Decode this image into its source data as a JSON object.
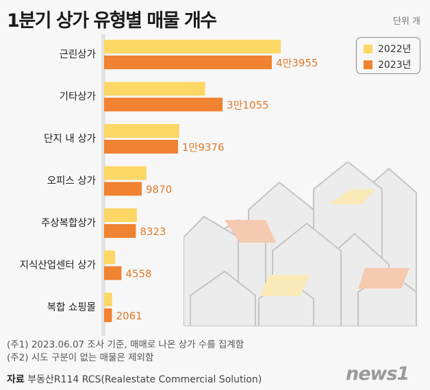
{
  "title": "1분기 상가 유형별 매물 개수",
  "unit": "단위 개",
  "colors": {
    "y2022": "#fdd766",
    "y2023": "#f08231",
    "label2023": "#e07a2a"
  },
  "chart_data": {
    "type": "bar",
    "orientation": "horizontal",
    "title": "1분기 상가 유형별 매물 개수",
    "categories": [
      "근린상가",
      "기타상가",
      "단지 내 상가",
      "오피스 상가",
      "주상복합상가",
      "지식산업센터 상가",
      "복합 쇼핑몰"
    ],
    "series": [
      {
        "name": "2022년",
        "values": [
          46300,
          26500,
          19700,
          11100,
          8600,
          2900,
          2100
        ],
        "labels": [
          "",
          "",
          "",
          "",
          "",
          "",
          ""
        ]
      },
      {
        "name": "2023년",
        "values": [
          43955,
          31055,
          19376,
          9870,
          8323,
          4558,
          2061
        ],
        "labels": [
          "4만3955",
          "3만1055",
          "1만9376",
          "9870",
          "8323",
          "4558",
          "2061"
        ]
      }
    ],
    "legend": "top-right",
    "grid": false
  },
  "notes": [
    "(주1) 2023.06.07 조사 기준, 매매로 나온 상가 수를 집계함",
    "(주2) 시도 구분이 없는 매물은 제외함"
  ],
  "source": {
    "label": "자료",
    "text": "부동산R114 RCS(Realestate Commercial Solution)"
  },
  "logo": "news1"
}
